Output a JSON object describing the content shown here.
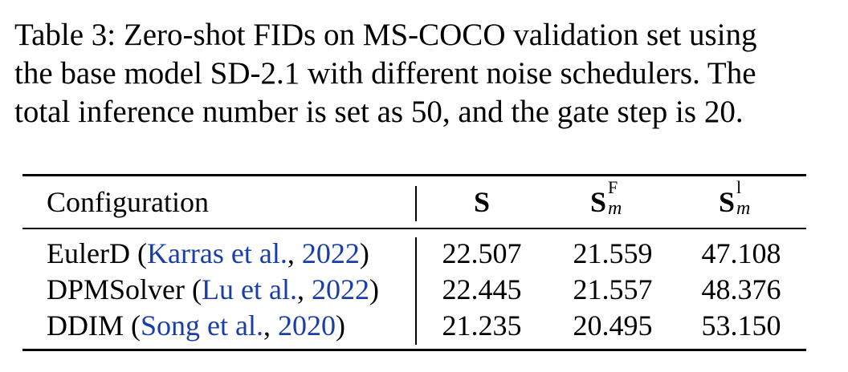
{
  "caption": {
    "line1": "Table 3: Zero-shot FIDs on MS-COCO validation set using",
    "line2": "the base model SD-2.1 with different noise schedulers. The",
    "line3": "total inference number is set as 50, and the gate step is 20."
  },
  "table": {
    "header": {
      "config": "Configuration",
      "col1": "S",
      "col2": {
        "base": "S",
        "sup": "F",
        "sub": "m"
      },
      "col3": {
        "base": "S",
        "sup": "l",
        "sub": "m"
      }
    },
    "rows": [
      {
        "name": "EulerD",
        "cite_authors": "Karras et al.",
        "cite_year": "2022",
        "s": "22.507",
        "smf": "21.559",
        "sml": "47.108"
      },
      {
        "name": "DPMSolver",
        "cite_authors": "Lu et al.",
        "cite_year": "2022",
        "s": "22.445",
        "smf": "21.557",
        "sml": "48.376"
      },
      {
        "name": "DDIM",
        "cite_authors": "Song et al.",
        "cite_year": "2020",
        "s": "21.235",
        "smf": "20.495",
        "sml": "53.150"
      }
    ]
  },
  "colors": {
    "citation": "#1a3ea8"
  }
}
